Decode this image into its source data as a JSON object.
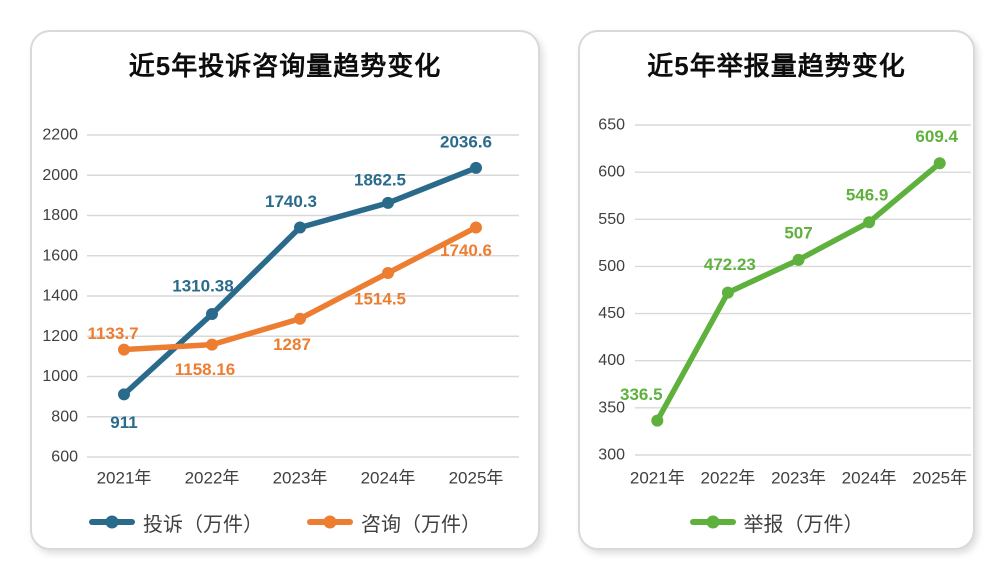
{
  "page": {
    "background": "#ffffff"
  },
  "style": {
    "grid_color": "#d9d9d9",
    "axis_text_color": "#404040",
    "legend_text_color": "#404040",
    "title_color": "#0d0d0d",
    "card_border_color": "#d9d9d9"
  },
  "chart_data": [
    {
      "type": "line",
      "title": "近5年投诉咨询量趋势变化",
      "categories": [
        "2021年",
        "2022年",
        "2023年",
        "2024年",
        "2025年"
      ],
      "ylim": [
        600,
        2200
      ],
      "ytick_step": 200,
      "ytick_labels": [
        "600",
        "800",
        "1000",
        "1200",
        "1400",
        "1600",
        "1800",
        "2000",
        "2200"
      ],
      "grid": true,
      "legend_position": "bottom",
      "series": [
        {
          "name": "投诉（万件）",
          "color": "#2A6B8C",
          "values": [
            911,
            1310.38,
            1740.3,
            1862.5,
            2036.6
          ],
          "labels": [
            "911",
            "1310.38",
            "1740.3",
            "1862.5",
            "2036.6"
          ],
          "label_offsets": [
            [
              0,
              28
            ],
            [
              -9,
              -28
            ],
            [
              -9,
              -26
            ],
            [
              -8,
              -23
            ],
            [
              -10,
              -26
            ]
          ]
        },
        {
          "name": "咨询（万件）",
          "color": "#ED7D31",
          "values": [
            1133.7,
            1158.16,
            1287,
            1514.5,
            1740.6
          ],
          "labels": [
            "1133.7",
            "1158.16",
            "1287",
            "1514.5",
            "1740.6"
          ],
          "label_offsets": [
            [
              -11,
              -16
            ],
            [
              -7,
              25
            ],
            [
              -8,
              26
            ],
            [
              -8,
              26
            ],
            [
              -10,
              23
            ]
          ]
        }
      ]
    },
    {
      "type": "line",
      "title": "近5年举报量趋势变化",
      "categories": [
        "2021年",
        "2022年",
        "2023年",
        "2024年",
        "2025年"
      ],
      "ylim": [
        300,
        650
      ],
      "ytick_step": 50,
      "ytick_labels": [
        "300",
        "350",
        "400",
        "450",
        "500",
        "550",
        "600",
        "650"
      ],
      "grid": true,
      "legend_position": "bottom",
      "series": [
        {
          "name": "举报（万件）",
          "color": "#5EB13C",
          "values": [
            336.5,
            472.23,
            507,
            546.9,
            609.4
          ],
          "labels": [
            "336.5",
            "472.23",
            "507",
            "546.9",
            "609.4"
          ],
          "label_offsets": [
            [
              -16,
              -26
            ],
            [
              2,
              -28
            ],
            [
              0,
              -27
            ],
            [
              -2,
              -27
            ],
            [
              -3,
              -27
            ]
          ]
        }
      ]
    }
  ]
}
